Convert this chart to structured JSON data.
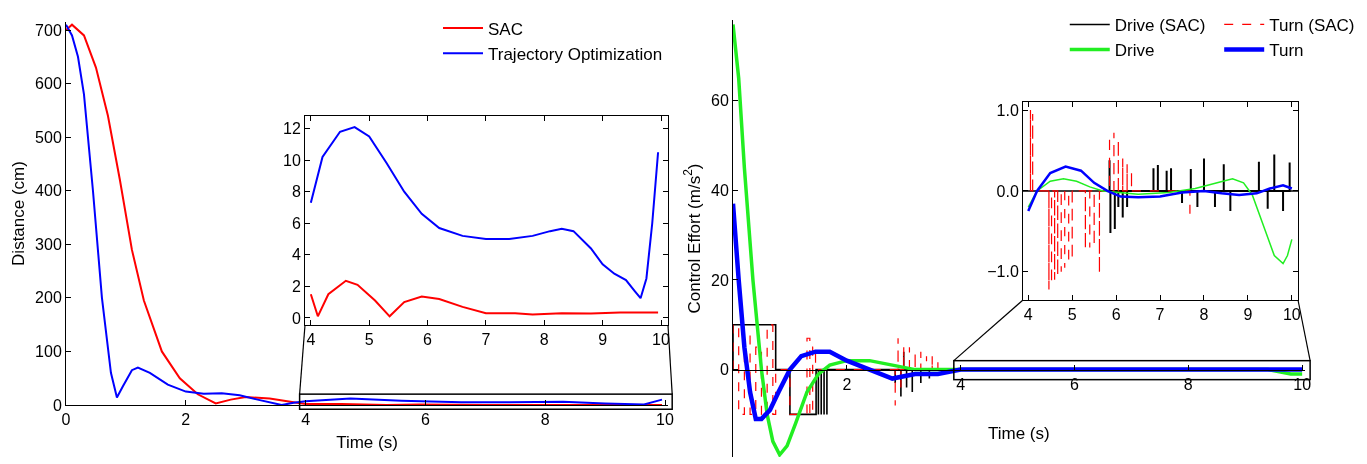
{
  "chart_data": [
    {
      "type": "line",
      "xlabel": "Time (s)",
      "ylabel": "Distance (cm)",
      "xlim": [
        0,
        10.05
      ],
      "ylim": [
        0,
        715
      ],
      "xticks": [
        0,
        2,
        4,
        6,
        8,
        10
      ],
      "yticks": [
        0,
        100,
        200,
        300,
        400,
        500,
        600,
        700
      ],
      "grid": false,
      "legend": "top right",
      "series": [
        {
          "name": "SAC",
          "color": "#ff0000",
          "x": [
            0,
            0.1,
            0.3,
            0.5,
            0.7,
            0.9,
            1.1,
            1.3,
            1.6,
            1.9,
            2.2,
            2.5,
            2.75,
            3.0,
            3.4,
            3.8,
            4,
            4.6,
            5.35,
            5.9,
            7.0,
            9.95
          ],
          "values": [
            700,
            710,
            690,
            630,
            540,
            420,
            290,
            195,
            100,
            50,
            20,
            3,
            10,
            15,
            12,
            5,
            2,
            2,
            0,
            1,
            0,
            0
          ]
        },
        {
          "name": "Trajectory Optimization",
          "color": "#0000ff",
          "x": [
            0,
            0.1,
            0.2,
            0.3,
            0.45,
            0.6,
            0.75,
            0.85,
            0.95,
            1.1,
            1.2,
            1.4,
            1.7,
            2.0,
            2.3,
            2.6,
            2.9,
            3.2,
            3.6,
            3.8,
            4,
            4.75,
            5.6,
            6.6,
            7.4,
            8.3,
            9.0,
            9.65,
            9.95
          ],
          "values": [
            710,
            690,
            650,
            580,
            400,
            200,
            60,
            14,
            35,
            65,
            70,
            60,
            38,
            25,
            21,
            22,
            18,
            10,
            0,
            4,
            7,
            12,
            8,
            5,
            5,
            6,
            3,
            1,
            10
          ]
        }
      ]
    },
    {
      "type": "line",
      "xlim": [
        3.9,
        10.12
      ],
      "ylim": [
        -0.45,
        12.8
      ],
      "xticks": [
        4,
        5,
        6,
        7,
        8,
        9,
        10
      ],
      "yticks": [
        0,
        2,
        4,
        6,
        8,
        10,
        12
      ],
      "grid": false,
      "series": [
        {
          "color": "#ff0000",
          "x": [
            4,
            4.12,
            4.3,
            4.6,
            4.8,
            5.1,
            5.35,
            5.6,
            5.9,
            6.2,
            6.6,
            7.0,
            7.5,
            7.8,
            8.3,
            8.8,
            9.3,
            9.95
          ],
          "values": [
            1.5,
            0.1,
            1.5,
            2.35,
            2.1,
            1.1,
            0.1,
            1.0,
            1.35,
            1.2,
            0.7,
            0.3,
            0.3,
            0.22,
            0.3,
            0.28,
            0.35,
            0.35
          ]
        },
        {
          "color": "#0000ff",
          "x": [
            4,
            4.2,
            4.5,
            4.75,
            5.0,
            5.3,
            5.6,
            5.9,
            6.2,
            6.6,
            7.0,
            7.4,
            7.8,
            8.1,
            8.3,
            8.5,
            8.8,
            9.0,
            9.2,
            9.4,
            9.55,
            9.65,
            9.75,
            9.85,
            9.95
          ],
          "values": [
            7.3,
            10.2,
            11.8,
            12.1,
            11.5,
            9.8,
            8,
            6.6,
            5.7,
            5.2,
            5.0,
            5.0,
            5.2,
            5.5,
            5.65,
            5.5,
            4.4,
            3.4,
            2.8,
            2.4,
            1.7,
            1.25,
            2.5,
            6,
            10.5
          ]
        }
      ]
    },
    {
      "type": "line",
      "xlabel": "Time (s)",
      "ylabel": "Control Effort (m/s$^{2}$)",
      "xlim": [
        0,
        10.05
      ],
      "ylim": [
        -19.5,
        78
      ],
      "xticks": [
        2,
        4,
        6,
        8,
        10
      ],
      "yticks": [
        0,
        20,
        40,
        60
      ],
      "grid": false,
      "legend": "top right",
      "series": [
        {
          "name": "Drive (SAC)",
          "color": "#000000",
          "line_style": "solid",
          "x": [
            0,
            0,
            0.75,
            0.75,
            1.0,
            1.0,
            1.46,
            1.46,
            1.5,
            1.5,
            1.5,
            1.55,
            1.55,
            1.55,
            1.6,
            1.6,
            1.6,
            1.65,
            1.65,
            1.65,
            2.85,
            2.85,
            2.85,
            2.95,
            2.95,
            2.95,
            3.0,
            3.0,
            3.0,
            3.05,
            3.05,
            3.05,
            3.15,
            3.15,
            3.15,
            3.3,
            3.3,
            3.3,
            3.45,
            3.45,
            3.45
          ],
          "values": [
            0,
            10,
            10,
            0,
            0,
            -10,
            -10,
            0,
            0,
            -10,
            0,
            0,
            -10,
            0,
            0,
            -10,
            0,
            0,
            -10,
            0,
            0,
            -3,
            0,
            0,
            -6,
            0,
            0,
            4,
            0,
            0,
            -4,
            0,
            0,
            -5,
            0,
            0,
            -3,
            0,
            0,
            -2,
            0
          ]
        },
        {
          "name": "Turn (SAC)",
          "color": "#ff0000",
          "line_style": "dashed",
          "x": [
            0,
            0,
            0.1,
            0.1,
            0.2,
            0.2,
            0.3,
            0.3,
            0.4,
            0.4,
            0.5,
            0.5,
            0.6,
            0.6,
            0.7,
            0.7,
            0.75,
            0.75,
            1.0,
            1.0,
            1.3,
            1.3,
            1.35,
            1.35,
            1.4,
            1.4,
            1.45,
            1.45,
            2.85,
            2.85,
            2.85,
            2.9,
            2.9,
            2.9,
            2.95,
            2.95,
            2.95,
            3.0,
            3.0,
            3.0,
            3.1,
            3.1,
            3.1,
            3.2,
            3.2,
            3.2,
            3.3,
            3.3,
            3.3,
            3.4,
            3.4,
            3.4,
            3.5,
            3.5,
            3.5,
            3.6,
            3.6
          ],
          "values": [
            0,
            10,
            10,
            -10,
            -10,
            8,
            8,
            -10,
            -10,
            5,
            5,
            -10,
            -10,
            10,
            10,
            -10,
            -10,
            0,
            0,
            -10,
            -10,
            7,
            7,
            -10,
            -10,
            5,
            5,
            0,
            0,
            -8,
            0,
            0,
            7,
            0,
            0,
            -4,
            0,
            0,
            5,
            0,
            0,
            5,
            0,
            0,
            4,
            0,
            0,
            4,
            0,
            0,
            3,
            0,
            0,
            3,
            0,
            0,
            2
          ]
        },
        {
          "name": "Drive",
          "color": "#22ee22",
          "line_style": "solid",
          "x": [
            0,
            0.1,
            0.2,
            0.35,
            0.5,
            0.6,
            0.7,
            0.82,
            0.95,
            1.1,
            1.3,
            1.5,
            1.7,
            2.0,
            2.4,
            2.8,
            3.2,
            4,
            9.4,
            9.8,
            10
          ],
          "values": [
            77,
            65,
            45,
            20,
            0,
            -10,
            -16,
            -19,
            -17,
            -12,
            -5,
            -1,
            1,
            2,
            2,
            1,
            0,
            0,
            0,
            -1,
            -1
          ]
        },
        {
          "name": "Turn",
          "color": "#0000ff",
          "line_style": "solid",
          "x": [
            0,
            0.1,
            0.2,
            0.3,
            0.4,
            0.5,
            0.65,
            0.8,
            1.0,
            1.2,
            1.45,
            1.7,
            2.0,
            2.4,
            2.8,
            3.2,
            3.6,
            4,
            10
          ],
          "values": [
            37,
            20,
            5,
            -5,
            -11,
            -11,
            -9,
            -5,
            0,
            3,
            4,
            4,
            2,
            0,
            -2,
            -1,
            -1,
            0,
            0
          ]
        }
      ]
    },
    {
      "type": "line",
      "xlim": [
        3.88,
        10.14
      ],
      "ylim": [
        -1.35,
        1.1
      ],
      "xticks": [
        4,
        5,
        6,
        7,
        8,
        9,
        10
      ],
      "yticks": [
        {
          "value": -1,
          "label": "−1.0"
        },
        {
          "value": 0,
          "label": "0.0"
        },
        {
          "value": 1,
          "label": "1.0"
        }
      ],
      "grid": false,
      "ref_lines": [
        {
          "axis": "y",
          "value": 0,
          "color": "#000000"
        }
      ],
      "series": [
        {
          "color": "#000000",
          "line_style": "solid",
          "x": [
            5.85,
            5.85,
            5.85,
            5.87,
            5.87,
            5.87,
            5.97,
            5.97,
            5.97,
            6.05,
            6.05,
            6.05,
            6.15,
            6.15,
            6.15,
            6.25,
            6.25,
            6.25,
            6.85,
            6.85,
            6.85,
            6.95,
            6.95,
            6.95,
            7.15,
            7.15,
            7.15,
            7.25,
            7.25,
            7.25,
            7.5,
            7.5,
            7.5,
            7.7,
            7.7,
            7.7,
            7.85,
            7.85,
            7.85,
            8.0,
            8.0,
            8.0,
            8.25,
            8.25,
            8.25,
            8.45,
            8.45,
            8.45,
            8.6,
            8.6,
            8.6,
            9.25,
            9.25,
            9.25,
            9.45,
            9.45,
            9.45,
            9.6,
            9.6,
            9.6,
            9.8,
            9.8,
            9.8,
            9.95,
            9.95
          ],
          "values": [
            0,
            0.38,
            0,
            0,
            -0.52,
            0,
            0,
            -0.47,
            0,
            0,
            -0.2,
            0,
            0,
            -0.33,
            0,
            0,
            -0.2,
            0,
            0,
            0.28,
            0,
            0,
            0.32,
            0,
            0,
            0.25,
            0,
            0,
            0.28,
            0,
            0,
            -0.15,
            0,
            0,
            0.27,
            0,
            0,
            -0.2,
            0,
            0,
            0.4,
            0,
            0,
            -0.2,
            0,
            0,
            0.33,
            0,
            0,
            -0.25,
            0,
            0,
            0.36,
            0,
            0,
            -0.22,
            0,
            0,
            0.45,
            0,
            0,
            -0.25,
            0,
            0,
            0.35
          ]
        },
        {
          "color": "#ff0000",
          "line_style": "dashed",
          "x": [
            4.05,
            4.05,
            4.05,
            4.1,
            4.1,
            4.1,
            4.47,
            4.47,
            4.47,
            4.53,
            4.53,
            4.53,
            4.6,
            4.6,
            4.6,
            4.67,
            4.67,
            4.67,
            4.75,
            4.75,
            4.75,
            4.83,
            4.83,
            4.83,
            4.92,
            4.92,
            4.92,
            5.0,
            5.0,
            5.0,
            5.3,
            5.3,
            5.3,
            5.4,
            5.4,
            5.4,
            5.5,
            5.5,
            5.5,
            5.62,
            5.62,
            5.62,
            5.85,
            5.85,
            5.85,
            5.95,
            5.95,
            5.95,
            6.05,
            6.05,
            6.05,
            6.15,
            6.15,
            6.15,
            6.25,
            6.25,
            6.25,
            6.35,
            6.35,
            6.35,
            7.68,
            7.68
          ],
          "values": [
            0,
            1.0,
            0,
            0,
            0.95,
            0,
            0,
            -1.22,
            0,
            0,
            -1.15,
            0,
            0,
            -1.1,
            0,
            0,
            -1.05,
            0,
            0,
            -1.0,
            0,
            0,
            -0.95,
            0,
            0,
            -0.9,
            0,
            0,
            -0.85,
            0,
            0,
            -0.72,
            0,
            0,
            -0.7,
            0,
            0,
            -0.68,
            0,
            0,
            -1.02,
            0,
            0,
            0.68,
            0,
            0,
            0.72,
            0,
            0,
            0.63,
            0,
            0,
            0.4,
            0,
            0,
            0.33,
            0,
            0,
            0.25,
            0,
            0,
            -0.3
          ]
        },
        {
          "color": "#22ee22",
          "line_style": "solid",
          "x": [
            4,
            4.2,
            4.5,
            4.8,
            5.1,
            5.4,
            5.7,
            6.5,
            7.2,
            7.8,
            8.3,
            8.65,
            8.9,
            9.1,
            9.4,
            9.6,
            9.8,
            9.9,
            10
          ],
          "values": [
            -0.2,
            0,
            0.12,
            0.15,
            0.12,
            0.05,
            0,
            -0.04,
            -0.02,
            0.03,
            0.1,
            0.15,
            0.1,
            -0.05,
            -0.5,
            -0.8,
            -0.9,
            -0.8,
            -0.6
          ]
        },
        {
          "color": "#0000ff",
          "line_style": "solid",
          "x": [
            4,
            4.2,
            4.5,
            4.85,
            5.2,
            5.5,
            5.8,
            6.1,
            6.5,
            7.0,
            7.5,
            8.0,
            8.4,
            8.8,
            9.2,
            9.5,
            9.8,
            10
          ],
          "values": [
            -0.25,
            0,
            0.22,
            0.3,
            0.25,
            0.1,
            0,
            -0.07,
            -0.08,
            -0.07,
            -0.02,
            0,
            -0.03,
            -0.05,
            -0.03,
            0.03,
            0.07,
            0.03
          ]
        }
      ]
    }
  ]
}
